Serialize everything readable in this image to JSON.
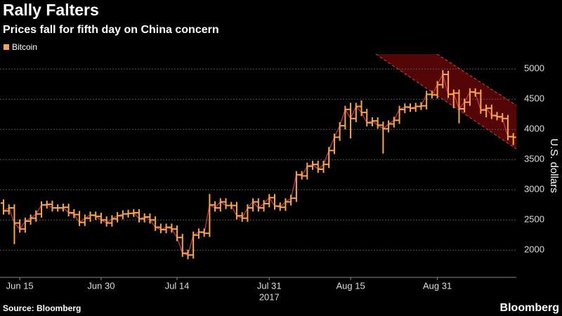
{
  "chart_data": {
    "type": "ohlc",
    "title": "Rally Falters",
    "subtitle": "Prices fall for fifth day on China concern",
    "y_label": "U.S. dollars",
    "year_label": "2017",
    "source": "Source: Bloomberg",
    "brand": "Bloomberg",
    "x": [
      "2017-06-12",
      "2017-06-13",
      "2017-06-14",
      "2017-06-15",
      "2017-06-16",
      "2017-06-17",
      "2017-06-18",
      "2017-06-19",
      "2017-06-20",
      "2017-06-21",
      "2017-06-22",
      "2017-06-23",
      "2017-06-24",
      "2017-06-25",
      "2017-06-26",
      "2017-06-27",
      "2017-06-28",
      "2017-06-29",
      "2017-06-30",
      "2017-07-01",
      "2017-07-02",
      "2017-07-03",
      "2017-07-04",
      "2017-07-05",
      "2017-07-06",
      "2017-07-07",
      "2017-07-08",
      "2017-07-09",
      "2017-07-10",
      "2017-07-11",
      "2017-07-12",
      "2017-07-13",
      "2017-07-14",
      "2017-07-15",
      "2017-07-16",
      "2017-07-17",
      "2017-07-18",
      "2017-07-19",
      "2017-07-20",
      "2017-07-21",
      "2017-07-22",
      "2017-07-23",
      "2017-07-24",
      "2017-07-25",
      "2017-07-26",
      "2017-07-27",
      "2017-07-28",
      "2017-07-29",
      "2017-07-30",
      "2017-07-31",
      "2017-08-01",
      "2017-08-02",
      "2017-08-03",
      "2017-08-04",
      "2017-08-05",
      "2017-08-06",
      "2017-08-07",
      "2017-08-08",
      "2017-08-09",
      "2017-08-10",
      "2017-08-11",
      "2017-08-12",
      "2017-08-13",
      "2017-08-14",
      "2017-08-15",
      "2017-08-16",
      "2017-08-17",
      "2017-08-18",
      "2017-08-19",
      "2017-08-20",
      "2017-08-21",
      "2017-08-22",
      "2017-08-23",
      "2017-08-24",
      "2017-08-25",
      "2017-08-26",
      "2017-08-27",
      "2017-08-28",
      "2017-08-29",
      "2017-08-30",
      "2017-08-31",
      "2017-09-01",
      "2017-09-02",
      "2017-09-03",
      "2017-09-04",
      "2017-09-05",
      "2017-09-06",
      "2017-09-07",
      "2017-09-08",
      "2017-09-09",
      "2017-09-10",
      "2017-09-11",
      "2017-09-12",
      "2017-09-13",
      "2017-09-14"
    ],
    "series": [
      {
        "name": "Bitcoin",
        "color": "#f7a64f",
        "line_color": "#d4305c",
        "open": [
          2780,
          2650,
          2700,
          2450,
          2350,
          2480,
          2530,
          2600,
          2750,
          2760,
          2700,
          2700,
          2710,
          2620,
          2590,
          2460,
          2530,
          2580,
          2560,
          2500,
          2450,
          2520,
          2570,
          2600,
          2610,
          2620,
          2520,
          2550,
          2500,
          2380,
          2340,
          2380,
          2350,
          2210,
          1950,
          1920,
          2250,
          2300,
          2280,
          2750,
          2700,
          2800,
          2740,
          2740,
          2570,
          2530,
          2700,
          2800,
          2700,
          2770,
          2870,
          2730,
          2710,
          2800,
          2860,
          3250,
          3230,
          3390,
          3420,
          3340,
          3420,
          3650,
          3870,
          4060,
          4330,
          4180,
          4380,
          4280,
          4110,
          4140,
          4070,
          4010,
          4090,
          4150,
          4330,
          4370,
          4350,
          4380,
          4390,
          4580,
          4570,
          4740,
          4910,
          4580,
          4600,
          4340,
          4450,
          4620,
          4600,
          4320,
          4350,
          4230,
          4210,
          4180,
          3880
        ],
        "high": [
          2840,
          2760,
          2760,
          2510,
          2540,
          2590,
          2660,
          2810,
          2820,
          2820,
          2760,
          2770,
          2770,
          2680,
          2650,
          2590,
          2640,
          2640,
          2620,
          2560,
          2580,
          2630,
          2660,
          2670,
          2680,
          2680,
          2610,
          2610,
          2560,
          2440,
          2440,
          2440,
          2410,
          2270,
          2010,
          2310,
          2360,
          2360,
          2930,
          2810,
          2860,
          2860,
          2800,
          2800,
          2630,
          2760,
          2860,
          2860,
          2830,
          2930,
          2930,
          2790,
          2860,
          2920,
          3310,
          3310,
          3450,
          3480,
          3480,
          3480,
          3710,
          3930,
          4120,
          4390,
          4440,
          4440,
          4480,
          4340,
          4200,
          4200,
          4130,
          4150,
          4210,
          4390,
          4430,
          4430,
          4440,
          4450,
          4640,
          4640,
          4800,
          4980,
          4970,
          4660,
          4660,
          4510,
          4680,
          4680,
          4660,
          4410,
          4410,
          4290,
          4270,
          4240,
          3940
        ],
        "low": [
          2590,
          2590,
          2100,
          2290,
          2290,
          2420,
          2470,
          2540,
          2690,
          2640,
          2640,
          2640,
          2560,
          2530,
          2400,
          2400,
          2470,
          2500,
          2440,
          2390,
          2390,
          2460,
          2510,
          2540,
          2550,
          2460,
          2460,
          2440,
          2320,
          2280,
          2280,
          2290,
          2150,
          1890,
          1850,
          1860,
          2190,
          2220,
          2220,
          2640,
          2640,
          2680,
          2680,
          2510,
          2470,
          2470,
          2640,
          2640,
          2640,
          2710,
          2670,
          2650,
          2650,
          2740,
          2800,
          3170,
          3170,
          3330,
          3280,
          3280,
          3360,
          3590,
          3810,
          4000,
          3850,
          4120,
          4220,
          4050,
          4050,
          4010,
          3600,
          3950,
          4030,
          4090,
          4270,
          4290,
          4290,
          4320,
          4330,
          4510,
          4510,
          4680,
          4520,
          4350,
          4100,
          4280,
          4390,
          4540,
          4260,
          4200,
          4170,
          4150,
          4120,
          3820,
          3740
        ],
        "close": [
          2650,
          2700,
          2450,
          2350,
          2480,
          2530,
          2600,
          2750,
          2760,
          2700,
          2700,
          2710,
          2620,
          2590,
          2460,
          2530,
          2580,
          2560,
          2500,
          2450,
          2520,
          2570,
          2600,
          2610,
          2620,
          2520,
          2550,
          2500,
          2380,
          2340,
          2380,
          2350,
          2210,
          1950,
          1920,
          2250,
          2300,
          2280,
          2750,
          2700,
          2800,
          2740,
          2740,
          2570,
          2530,
          2700,
          2800,
          2700,
          2770,
          2870,
          2730,
          2710,
          2800,
          2860,
          3250,
          3230,
          3390,
          3420,
          3340,
          3420,
          3650,
          3870,
          4060,
          4330,
          4180,
          4380,
          4280,
          4110,
          4140,
          4070,
          4010,
          4090,
          4150,
          4330,
          4370,
          4350,
          4380,
          4390,
          4580,
          4570,
          4740,
          4910,
          4580,
          4600,
          4340,
          4450,
          4620,
          4600,
          4320,
          4350,
          4230,
          4210,
          4180,
          3880,
          3870
        ]
      }
    ],
    "xticks": [
      {
        "value": "2017-06-15",
        "label": "Jun 15"
      },
      {
        "value": "2017-06-30",
        "label": "Jun 30"
      },
      {
        "value": "2017-07-14",
        "label": "Jul 14"
      },
      {
        "value": "2017-07-31",
        "label": "Jul 31"
      },
      {
        "value": "2017-08-15",
        "label": "Aug 15"
      },
      {
        "value": "2017-08-31",
        "label": "Aug 31"
      }
    ],
    "year_at": "2017-07-31",
    "ylim": [
      1550,
      5270
    ],
    "yticks": [
      2000,
      2500,
      3000,
      3500,
      4000,
      4500,
      5000
    ],
    "grid": true
  }
}
